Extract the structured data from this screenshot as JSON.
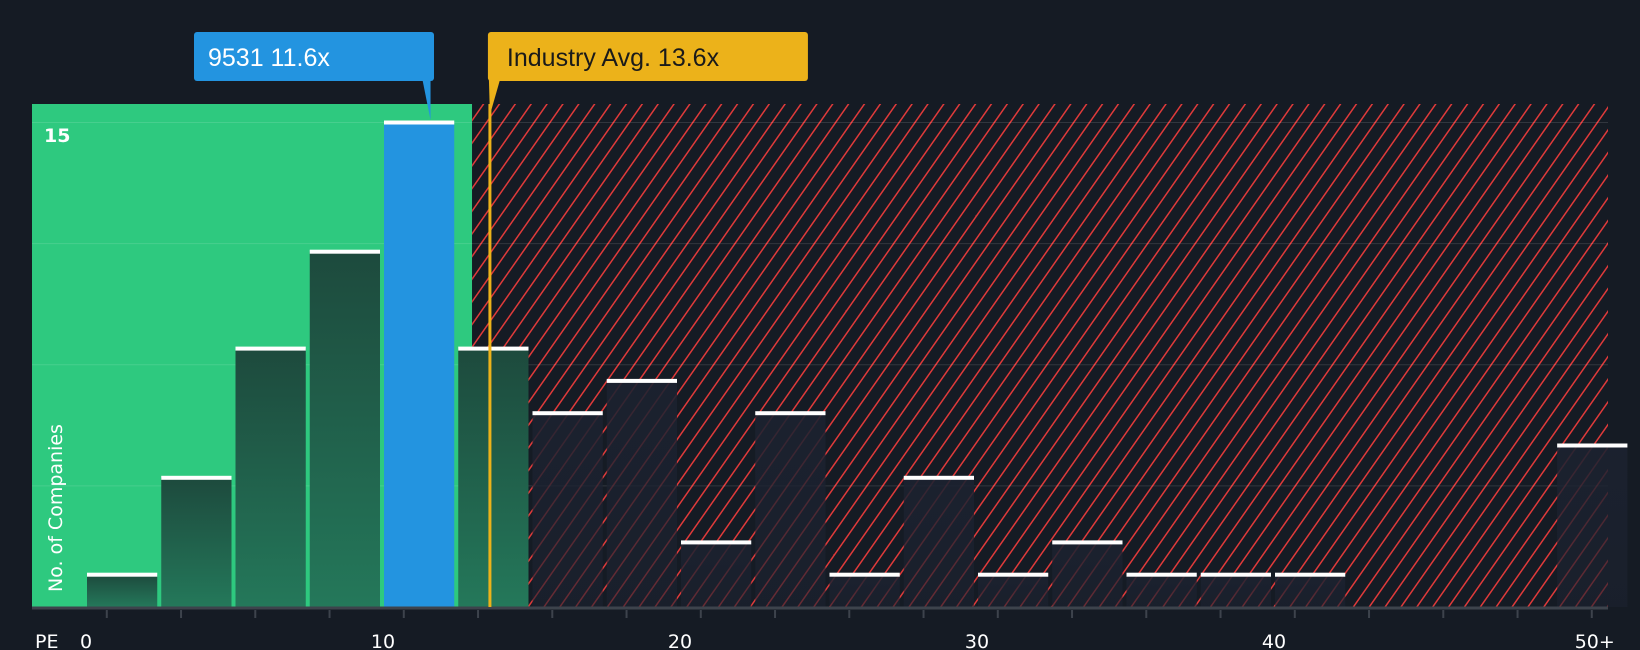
{
  "chart_data": {
    "type": "bar",
    "xlabel": "PE",
    "ylabel": "No. of Companies",
    "x_tick_labels": [
      "0",
      "10",
      "20",
      "30",
      "40",
      "50+"
    ],
    "y_tick_labels": [
      "15"
    ],
    "ylim": [
      0,
      15
    ],
    "bin_width": 2.5,
    "bins": [
      {
        "from": 0,
        "value": 1
      },
      {
        "from": 2.5,
        "value": 4
      },
      {
        "from": 5,
        "value": 8
      },
      {
        "from": 7.5,
        "value": 11
      },
      {
        "from": 10,
        "value": 15,
        "highlight": true
      },
      {
        "from": 12.5,
        "value": 8
      },
      {
        "from": 15,
        "value": 6
      },
      {
        "from": 17.5,
        "value": 7
      },
      {
        "from": 20,
        "value": 2
      },
      {
        "from": 22.5,
        "value": 6
      },
      {
        "from": 25,
        "value": 1
      },
      {
        "from": 27.5,
        "value": 4
      },
      {
        "from": 30,
        "value": 1
      },
      {
        "from": 32.5,
        "value": 2
      },
      {
        "from": 35,
        "value": 1
      },
      {
        "from": 37.5,
        "value": 1
      },
      {
        "from": 40,
        "value": 1
      },
      {
        "from": 42.5,
        "value": 0
      },
      {
        "from": 45,
        "value": 0
      },
      {
        "from": 47.5,
        "value": 0
      },
      {
        "from": "50+",
        "value": 5
      }
    ],
    "company": {
      "label": "9531 11.6x",
      "value": 11.6,
      "color": "#2394e0"
    },
    "industry": {
      "label": "Industry Avg. 13.6x",
      "value": 13.6,
      "color": "#ecb21a"
    },
    "colors": {
      "below": "#2ec97f",
      "above_hatch": "#e03a3a",
      "background": "#151b24"
    }
  }
}
